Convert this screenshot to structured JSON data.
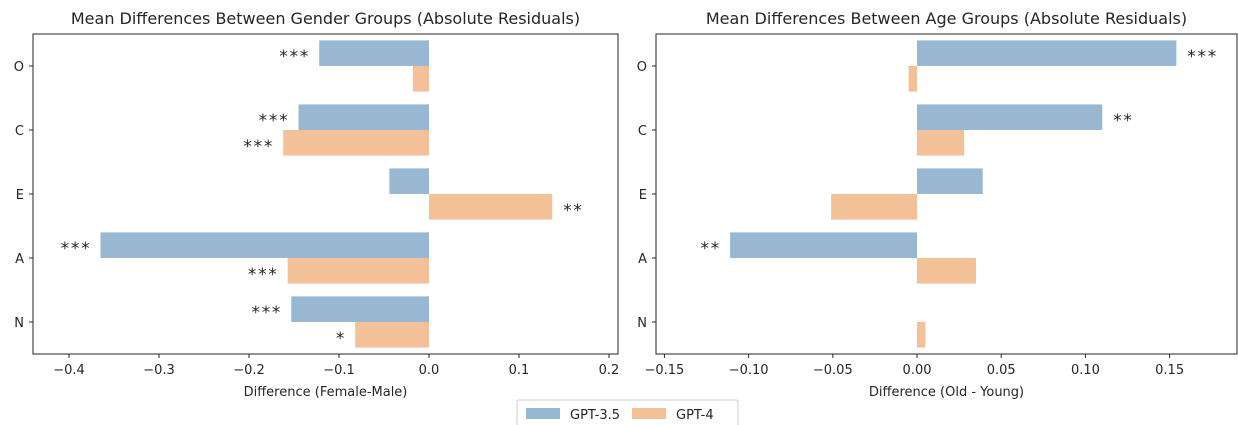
{
  "colors": {
    "gpt35": "#98b8d1",
    "gpt4": "#f2c198",
    "axis": "#262626"
  },
  "legend": [
    {
      "name": "GPT-3.5",
      "color_key": "gpt35"
    },
    {
      "name": "GPT-4",
      "color_key": "gpt4"
    }
  ],
  "chart_data": [
    {
      "type": "bar",
      "orientation": "horizontal",
      "title": "Mean Differences Between Gender Groups (Absolute Residuals)",
      "xlabel": "Difference (Female-Male)",
      "ylabel": "",
      "categories": [
        "O",
        "C",
        "E",
        "A",
        "N"
      ],
      "xlim": [
        -0.44,
        0.21
      ],
      "xticks": [
        -0.4,
        -0.3,
        -0.2,
        -0.1,
        0.0,
        0.1,
        0.2
      ],
      "xtick_labels": [
        "−0.4",
        "−0.3",
        "−0.2",
        "−0.1",
        "0.0",
        "0.1",
        "0.2"
      ],
      "series": [
        {
          "name": "GPT-3.5",
          "values": [
            -0.122,
            -0.145,
            -0.044,
            -0.365,
            -0.153
          ],
          "significance": [
            "***",
            "***",
            "",
            "***",
            "***"
          ]
        },
        {
          "name": "GPT-4",
          "values": [
            -0.018,
            -0.162,
            0.137,
            -0.157,
            -0.082
          ],
          "significance": [
            "",
            "***",
            "**",
            "***",
            "*"
          ]
        }
      ]
    },
    {
      "type": "bar",
      "orientation": "horizontal",
      "title": "Mean Differences Between Age Groups (Absolute Residuals)",
      "xlabel": "Difference (Old - Young)",
      "ylabel": "",
      "categories": [
        "O",
        "C",
        "E",
        "A",
        "N"
      ],
      "xlim": [
        -0.155,
        0.19
      ],
      "xticks": [
        -0.15,
        -0.1,
        -0.05,
        0.0,
        0.05,
        0.1,
        0.15
      ],
      "xtick_labels": [
        "−0.15",
        "−0.10",
        "−0.05",
        "0.00",
        "0.05",
        "0.10",
        "0.15"
      ],
      "series": [
        {
          "name": "GPT-3.5",
          "values": [
            0.154,
            0.11,
            0.039,
            -0.111,
            0.0
          ],
          "significance": [
            "***",
            "**",
            "",
            "**",
            ""
          ]
        },
        {
          "name": "GPT-4",
          "values": [
            -0.005,
            0.028,
            -0.051,
            0.035,
            0.005
          ],
          "significance": [
            "",
            "",
            "",
            "",
            ""
          ]
        }
      ]
    }
  ]
}
